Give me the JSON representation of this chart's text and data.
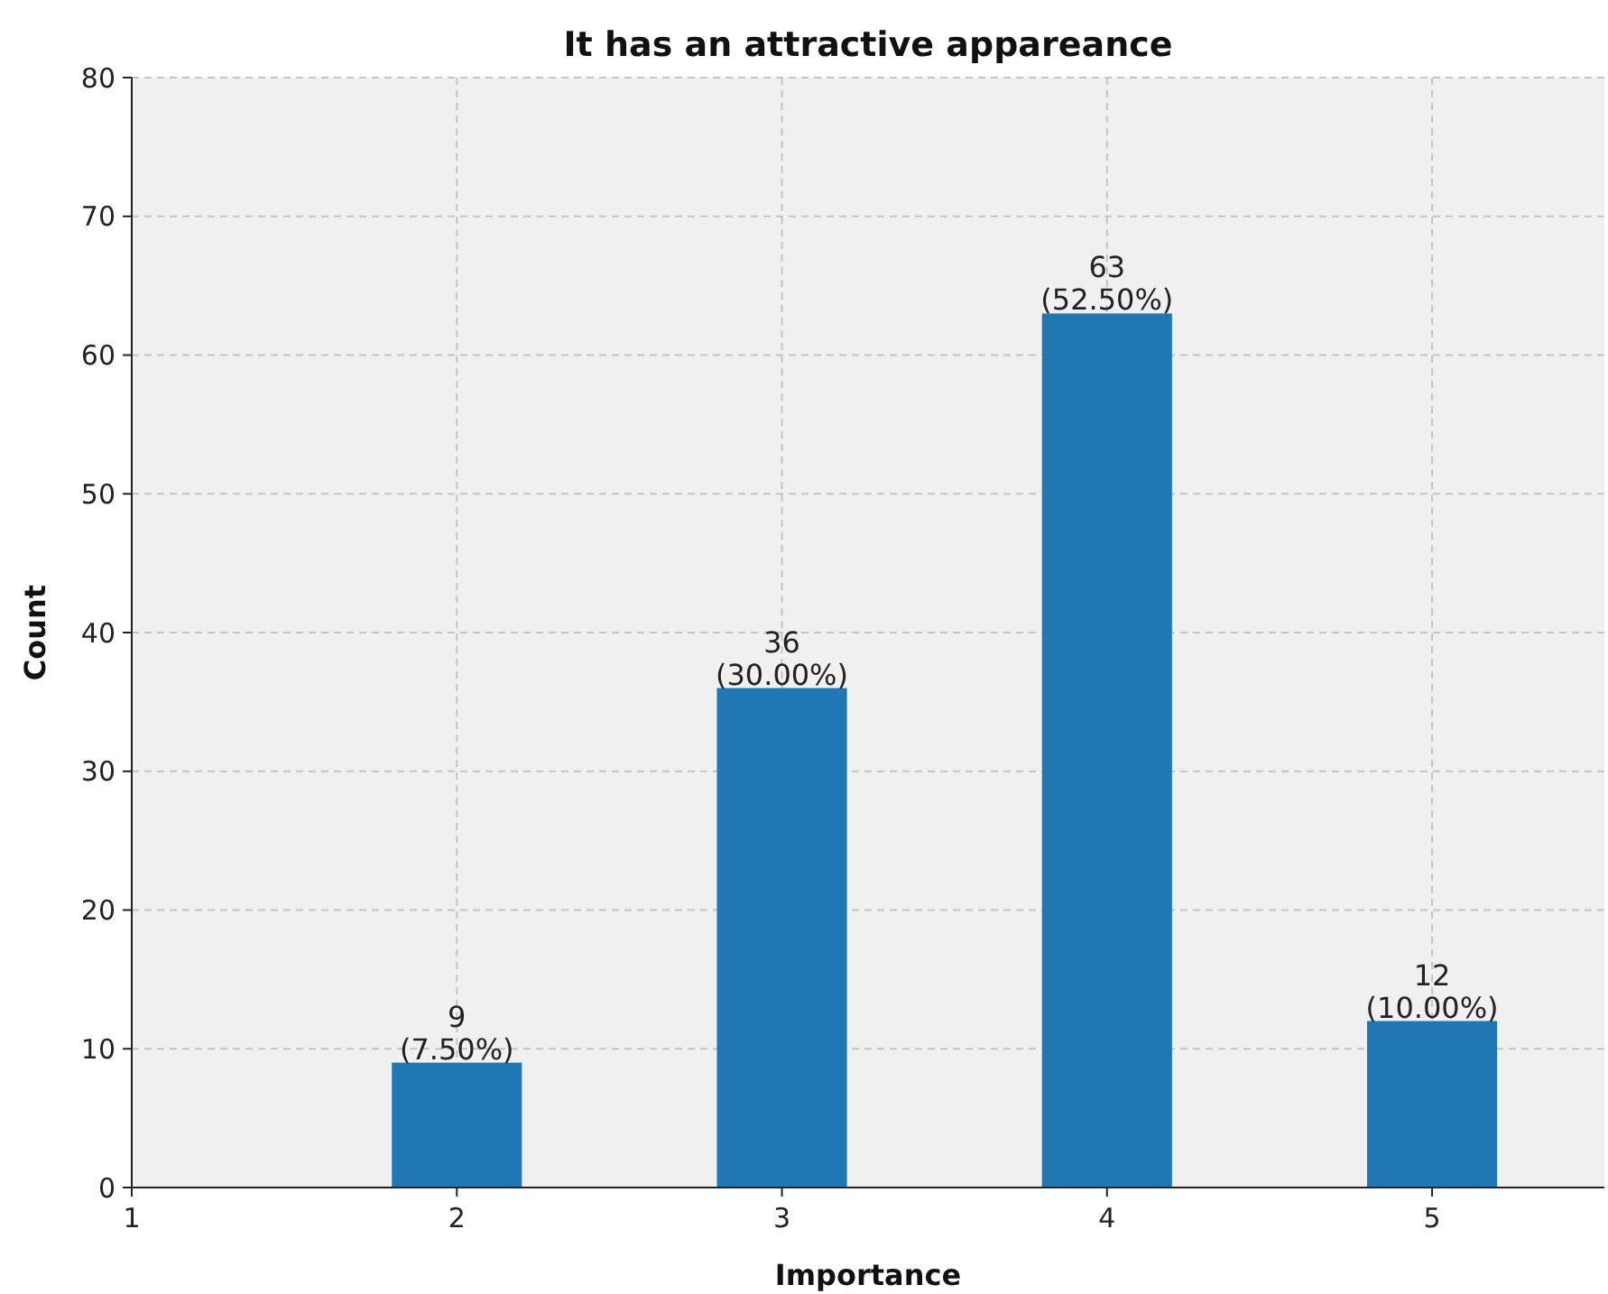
{
  "chart_data": {
    "type": "bar",
    "title": "It has an attractive appareance",
    "xlabel": "Importance",
    "ylabel": "Count",
    "x": [
      2,
      3,
      4,
      5
    ],
    "values": [
      9,
      36,
      63,
      12
    ],
    "value_labels": [
      "9\n(7.50%)",
      "36\n(30.00%)",
      "63\n(52.50%)",
      "12\n(10.00%)"
    ],
    "color": "#1f77b4",
    "xlim": [
      1,
      5.53
    ],
    "xticks": [
      1,
      2,
      3,
      4,
      5
    ],
    "ylim": [
      0,
      80
    ],
    "yticks": [
      0,
      10,
      20,
      30,
      40,
      50,
      60,
      70,
      80
    ],
    "grid": true
  }
}
